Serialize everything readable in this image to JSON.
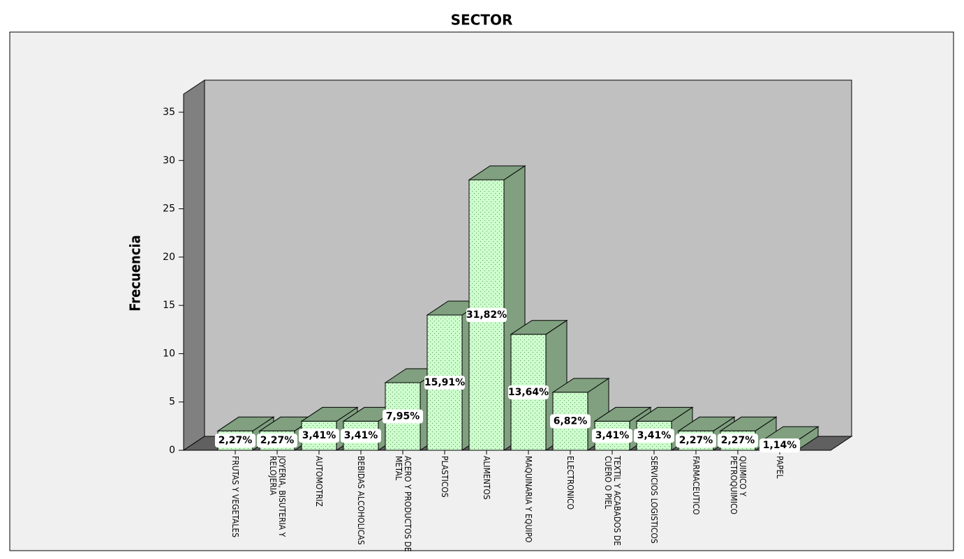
{
  "chart_data": {
    "type": "bar3d",
    "title": "SECTOR",
    "y_label": "Frecuencia",
    "categories": [
      "FRUTAS Y VEGETALES",
      "JOYERIA, BISUTERIA Y RELOJERIA",
      "AUTOMOTRIZ",
      "BEBIDAS ALCOHOLICAS",
      "ACERO Y PRODUCTOS DE METAL",
      "PLASTICOS",
      "ALIMENTOS",
      "MAQUINARIA Y EQUIPO",
      "ELECTRONICO",
      "TEXTIL Y ACABADOS DE CUERO O PIEL",
      "SERVICIOS LOGISTICOS",
      "FARMACEUTICO",
      "QUIMICO Y PETROQUIMICO",
      "PAPEL"
    ],
    "values": [
      2,
      2,
      3,
      3,
      7,
      14,
      28,
      12,
      6,
      3,
      3,
      2,
      2,
      1
    ],
    "percent_labels": [
      "2,27%",
      "2,27%",
      "3,41%",
      "3,41%",
      "7,95%",
      "15,91%",
      "31,82%",
      "13,64%",
      "6,82%",
      "3,41%",
      "3,41%",
      "2,27%",
      "2,27%",
      "1,14%"
    ],
    "color": "#ccffcc",
    "side_color": "#80a080",
    "ylim": [
      0,
      37
    ],
    "yticks": [
      0,
      5,
      10,
      15,
      20,
      25,
      30,
      35
    ]
  }
}
